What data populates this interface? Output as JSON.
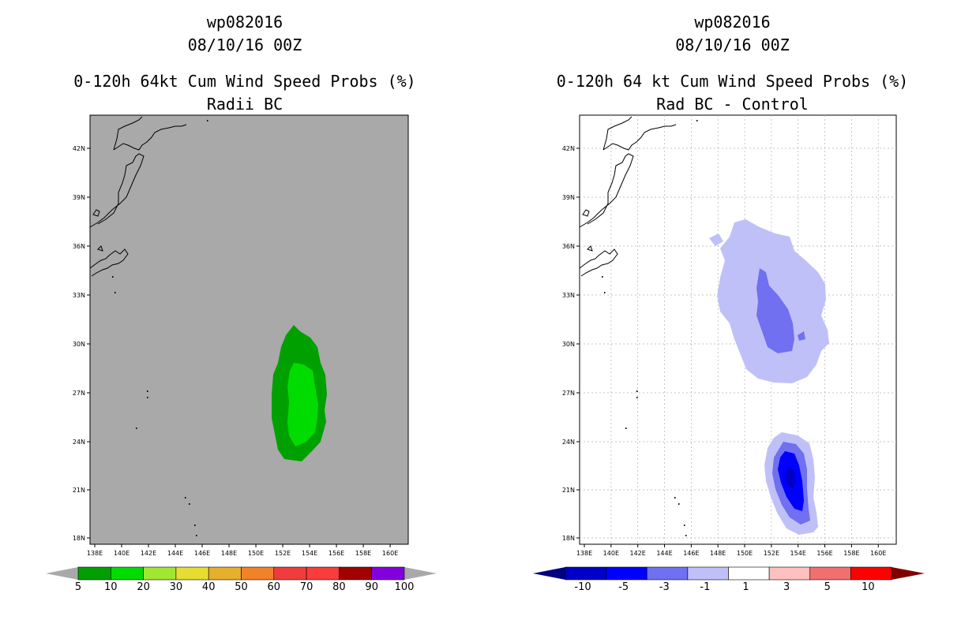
{
  "left_panel": {
    "title_line1": "wp082016",
    "title_line2": "08/10/16 00Z",
    "title_line3": "0-120h 64kt Cum Wind Speed Probs (%)",
    "title_line4": "Radii BC",
    "background_color": "#a9a9a9",
    "colorbar": {
      "labels": [
        "5",
        "10",
        "20",
        "30",
        "40",
        "50",
        "60",
        "70",
        "80",
        "90",
        "100"
      ],
      "colors": [
        "#00a000",
        "#00dc00",
        "#a0e632",
        "#e6dc32",
        "#e6af2d",
        "#f08228",
        "#f03c3c",
        "#fa3c3c",
        "#a00000",
        "#8200dc"
      ]
    }
  },
  "right_panel": {
    "title_line1": "wp082016",
    "title_line2": "08/10/16 00Z",
    "title_line3": "0-120h 64 kt Cum Wind Speed Probs (%)",
    "title_line4": "Rad BC - Control",
    "colorbar": {
      "labels": [
        "-10",
        "-5",
        "-3",
        "-1",
        "1",
        "3",
        "5",
        "10"
      ],
      "colors": [
        "#0000c8",
        "#0000ff",
        "#7070f0",
        "#c0c0f8",
        "#ffffff",
        "#ffc0c0",
        "#f07070",
        "#ff0000"
      ]
    }
  },
  "axes": {
    "lat_labels": [
      "42N",
      "39N",
      "36N",
      "33N",
      "30N",
      "27N",
      "24N",
      "21N",
      "18N"
    ],
    "lon_labels": [
      "138E",
      "140E",
      "142E",
      "144E",
      "146E",
      "148E",
      "150E",
      "152E",
      "154E",
      "156E",
      "158E",
      "160E"
    ]
  }
}
